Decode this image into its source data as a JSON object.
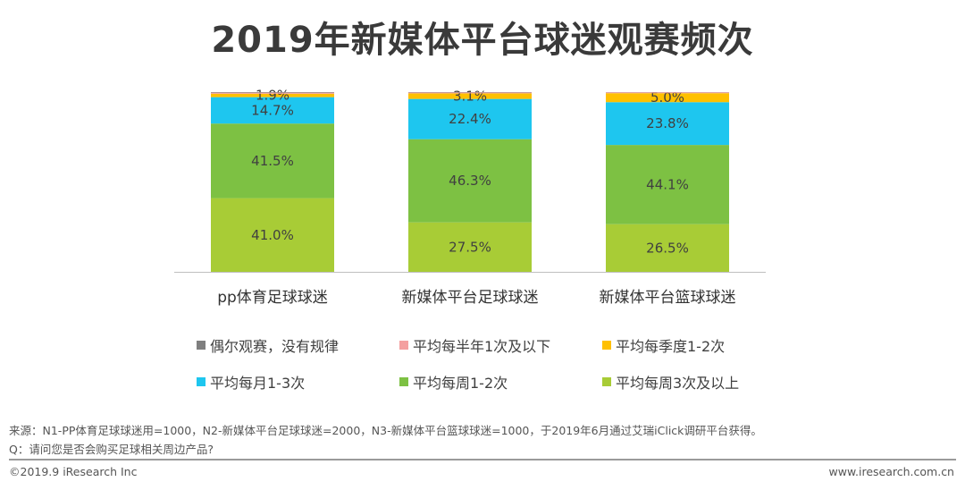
{
  "title": "2019年新媒体平台球迷观赛频次",
  "colors": {
    "irregular": "#7f7f7f",
    "half_year": "#f4a0a0",
    "quarter": "#ffc000",
    "monthly": "#1ec6ef",
    "weekly_1_2": "#7dc143",
    "weekly_3plus": "#a8cc36"
  },
  "chart_data": {
    "type": "bar",
    "stacked": true,
    "percent": true,
    "categories": [
      "pp体育足球球迷",
      "新媒体平台足球球迷",
      "新媒体平台篮球球迷"
    ],
    "ylim": [
      0,
      100
    ],
    "series": [
      {
        "name": "平均每周3次及以上",
        "key": "weekly_3plus",
        "values": [
          41.0,
          27.5,
          26.5
        ],
        "labels": [
          "41.0%",
          "27.5%",
          "26.5%"
        ]
      },
      {
        "name": "平均每周1-2次",
        "key": "weekly_1_2",
        "values": [
          41.5,
          46.3,
          44.1
        ],
        "labels": [
          "41.5%",
          "46.3%",
          "44.1%"
        ]
      },
      {
        "name": "平均每月1-3次",
        "key": "monthly",
        "values": [
          14.7,
          22.4,
          23.8
        ],
        "labels": [
          "14.7%",
          "22.4%",
          "23.8%"
        ]
      },
      {
        "name": "平均每季度1-2次",
        "key": "quarter",
        "values": [
          1.9,
          3.1,
          5.0
        ],
        "labels": [
          "1.9%",
          "3.1%",
          "5.0%"
        ]
      },
      {
        "name": "平均每半年1次及以下",
        "key": "half_year",
        "values": [
          0.6,
          0.5,
          0.5
        ],
        "labels": [
          "",
          "",
          ""
        ]
      },
      {
        "name": "偶尔观赛，没有规律",
        "key": "irregular",
        "values": [
          0.3,
          0.2,
          0.1
        ],
        "labels": [
          "",
          "",
          ""
        ]
      }
    ]
  },
  "legend": [
    {
      "label": "偶尔观赛，没有规律",
      "key": "irregular"
    },
    {
      "label": "平均每半年1次及以下",
      "key": "half_year"
    },
    {
      "label": "平均每季度1-2次",
      "key": "quarter"
    },
    {
      "label": "平均每月1-3次",
      "key": "monthly"
    },
    {
      "label": "平均每周1-2次",
      "key": "weekly_1_2"
    },
    {
      "label": "平均每周3次及以上",
      "key": "weekly_3plus"
    }
  ],
  "footer": {
    "source": "来源：N1-PP体育足球球迷用=1000，N2-新媒体平台足球球迷=2000，N3-新媒体平台篮球球迷=1000，于2019年6月通过艾瑞iClick调研平台获得。",
    "question": "Q：请问您是否会购买足球相关周边产品?",
    "copyright": "©2019.9 iResearch Inc",
    "website": "www.iresearch.com.cn"
  }
}
